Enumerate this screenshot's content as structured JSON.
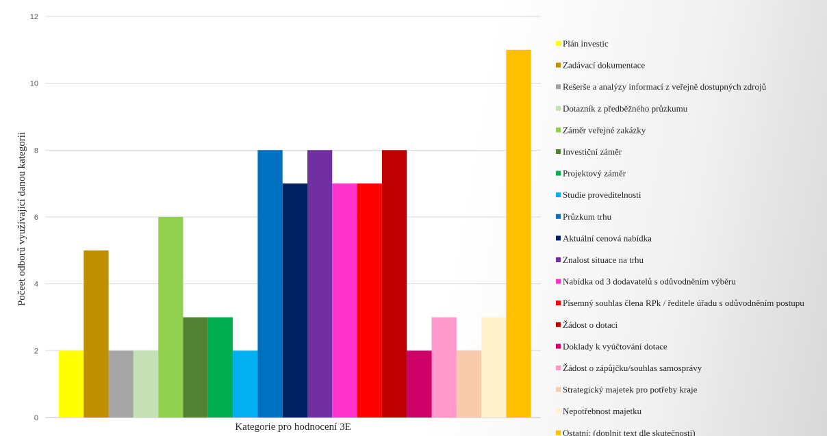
{
  "chart_data": {
    "type": "bar",
    "title": "",
    "xlabel": "Kategorie pro hodnocení 3E",
    "ylabel": "Počeet odborů využívající danou kategorii",
    "ylim": [
      0,
      12
    ],
    "yticks": [
      0,
      2,
      4,
      6,
      8,
      10,
      12
    ],
    "grid": true,
    "legend_position": "right",
    "categories": [
      "Kategorie pro hodnocení 3E"
    ],
    "series": [
      {
        "name": "Plán investic",
        "values": [
          2
        ],
        "color": "#ffff00"
      },
      {
        "name": "Zadávací dokumentace",
        "values": [
          5
        ],
        "color": "#bf8f00"
      },
      {
        "name": "Rešerše a analýzy informací z veřejně dostupných zdrojů",
        "values": [
          2
        ],
        "color": "#a5a5a5"
      },
      {
        "name": "Dotazník z předběžného průzkumu",
        "values": [
          2
        ],
        "color": "#c5e0b4"
      },
      {
        "name": "Záměr veřejné zakázky",
        "values": [
          6
        ],
        "color": "#92d050"
      },
      {
        "name": "Investiční záměr",
        "values": [
          3
        ],
        "color": "#548235"
      },
      {
        "name": "Projektový záměr",
        "values": [
          3
        ],
        "color": "#00b050"
      },
      {
        "name": "Studie proveditelnosti",
        "values": [
          2
        ],
        "color": "#00b0f0"
      },
      {
        "name": "Průzkum trhu",
        "values": [
          8
        ],
        "color": "#0070c0"
      },
      {
        "name": "Aktuální cenová nabídka",
        "values": [
          7
        ],
        "color": "#002060"
      },
      {
        "name": "Znalost situace na trhu",
        "values": [
          8
        ],
        "color": "#7030a0"
      },
      {
        "name": "Nabídka od 3 dodavatelů s odůvodněním výběru",
        "values": [
          7
        ],
        "color": "#ff33cc"
      },
      {
        "name": "Písemný souhlas člena RPk / ředitele úřadu s odůvodněním postupu",
        "values": [
          7
        ],
        "color": "#ff0000"
      },
      {
        "name": "Žádost o dotaci",
        "values": [
          8
        ],
        "color": "#c00000"
      },
      {
        "name": "Doklady k vyúčtování dotace",
        "values": [
          2
        ],
        "color": "#cc0066"
      },
      {
        "name": "Žádost o zápůjčku/souhlas samosprávy",
        "values": [
          3
        ],
        "color": "#ff99cc"
      },
      {
        "name": "Strategický majetek pro potřeby kraje",
        "values": [
          2
        ],
        "color": "#f8cbad"
      },
      {
        "name": "Nepotřebnost majetku",
        "values": [
          3
        ],
        "color": "#fff2cc"
      },
      {
        "name": "Ostatní: (doplnit text dle skutečnosti)",
        "values": [
          11
        ],
        "color": "#ffc000"
      }
    ]
  }
}
